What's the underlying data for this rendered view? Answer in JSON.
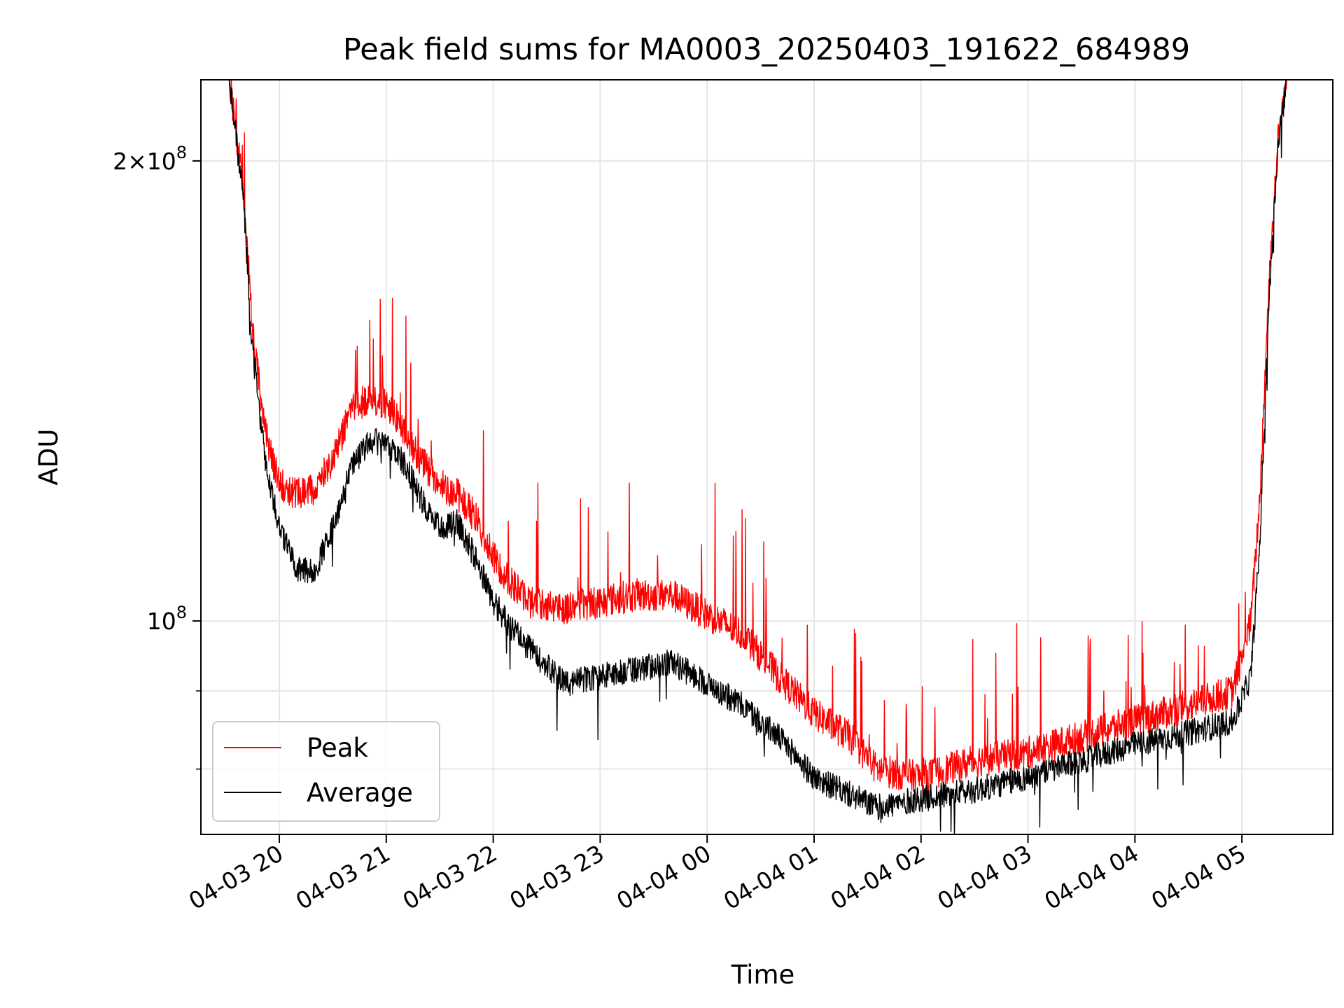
{
  "chart_data": {
    "type": "line",
    "title": "Peak field sums for MA0003_20250403_191622_684989",
    "xlabel": "Time",
    "ylabel": "ADU",
    "y_scale": "log",
    "grid": true,
    "legend_placement": "lower-left",
    "xlim": [
      "2025-04-03 19:16",
      "2025-04-04 05:51"
    ],
    "ylim": [
      72500000,
      226000000
    ],
    "x_ticks": [
      "04-03 20",
      "04-03 21",
      "04-03 22",
      "04-03 23",
      "04-04 00",
      "04-04 01",
      "04-04 02",
      "04-04 03",
      "04-04 04",
      "04-04 05"
    ],
    "x_tick_times": [
      "2025-04-03 20:00",
      "2025-04-03 21:00",
      "2025-04-03 22:00",
      "2025-04-03 23:00",
      "2025-04-04 00:00",
      "2025-04-04 01:00",
      "2025-04-04 02:00",
      "2025-04-04 03:00",
      "2025-04-04 04:00",
      "2025-04-04 05:00"
    ],
    "y_major_ticks": [
      {
        "value": 100000000,
        "mantissa": "",
        "exponent": "8"
      },
      {
        "value": 200000000,
        "mantissa": "2",
        "exponent": "8"
      }
    ],
    "y_minor_ticks": [
      80000000,
      90000000
    ],
    "series": [
      {
        "name": "Peak",
        "color": "#ff0000",
        "x": [
          "2025-04-03 19:16",
          "2025-04-03 19:32",
          "2025-04-03 19:40",
          "2025-04-03 19:45",
          "2025-04-03 19:52",
          "2025-04-03 20:00",
          "2025-04-03 20:10",
          "2025-04-03 20:20",
          "2025-04-03 20:30",
          "2025-04-03 20:40",
          "2025-04-03 20:50",
          "2025-04-03 21:00",
          "2025-04-03 21:10",
          "2025-04-03 21:20",
          "2025-04-03 21:30",
          "2025-04-03 21:40",
          "2025-04-03 21:50",
          "2025-04-03 22:00",
          "2025-04-03 22:10",
          "2025-04-03 22:20",
          "2025-04-03 22:40",
          "2025-04-03 23:00",
          "2025-04-03 23:20",
          "2025-04-03 23:40",
          "2025-04-04 00:00",
          "2025-04-04 00:20",
          "2025-04-04 00:40",
          "2025-04-04 01:00",
          "2025-04-04 01:20",
          "2025-04-04 01:35",
          "2025-04-04 02:00",
          "2025-04-04 02:30",
          "2025-04-04 03:00",
          "2025-04-04 03:30",
          "2025-04-04 04:00",
          "2025-04-04 04:30",
          "2025-04-04 04:55",
          "2025-04-04 05:05",
          "2025-04-04 05:10",
          "2025-04-04 05:15",
          "2025-04-04 05:20",
          "2025-04-04 05:25",
          "2025-04-04 05:30",
          "2025-04-04 05:51"
        ],
        "values": [
          226000000,
          226000000,
          190000000,
          155000000,
          133000000,
          123000000,
          121000000,
          122000000,
          128000000,
          137000000,
          140000000,
          139000000,
          133000000,
          127000000,
          123000000,
          121000000,
          117000000,
          110000000,
          106000000,
          103000000,
          102000000,
          103000000,
          104000000,
          104000000,
          101000000,
          98000000,
          92000000,
          87000000,
          84000000,
          80000000,
          79000000,
          81000000,
          82000000,
          84000000,
          86000000,
          88000000,
          90000000,
          100000000,
          120000000,
          165000000,
          205000000,
          226000000,
          226000000,
          226000000
        ]
      },
      {
        "name": "Average",
        "color": "#000000",
        "x": [
          "2025-04-03 19:16",
          "2025-04-03 19:32",
          "2025-04-03 19:40",
          "2025-04-03 19:45",
          "2025-04-03 19:52",
          "2025-04-03 20:00",
          "2025-04-03 20:10",
          "2025-04-03 20:20",
          "2025-04-03 20:30",
          "2025-04-03 20:40",
          "2025-04-03 20:50",
          "2025-04-03 21:00",
          "2025-04-03 21:10",
          "2025-04-03 21:20",
          "2025-04-03 21:30",
          "2025-04-03 21:40",
          "2025-04-03 21:50",
          "2025-04-03 22:00",
          "2025-04-03 22:10",
          "2025-04-03 22:20",
          "2025-04-03 22:40",
          "2025-04-03 23:00",
          "2025-04-03 23:20",
          "2025-04-03 23:40",
          "2025-04-04 00:00",
          "2025-04-04 00:20",
          "2025-04-04 00:40",
          "2025-04-04 01:00",
          "2025-04-04 01:20",
          "2025-04-04 01:35",
          "2025-04-04 02:00",
          "2025-04-04 02:30",
          "2025-04-04 03:00",
          "2025-04-04 03:30",
          "2025-04-04 04:00",
          "2025-04-04 04:30",
          "2025-04-04 04:55",
          "2025-04-04 05:05",
          "2025-04-04 05:10",
          "2025-04-04 05:15",
          "2025-04-04 05:20",
          "2025-04-04 05:25",
          "2025-04-04 05:30",
          "2025-04-04 05:51"
        ],
        "values": [
          226000000,
          226000000,
          188000000,
          150000000,
          128000000,
          115000000,
          108000000,
          108000000,
          115000000,
          126000000,
          131000000,
          131000000,
          127000000,
          120000000,
          115000000,
          116000000,
          110000000,
          103000000,
          99000000,
          96000000,
          91000000,
          92000000,
          93000000,
          94000000,
          91000000,
          88000000,
          84000000,
          79000000,
          77000000,
          75500000,
          76500000,
          77500000,
          79000000,
          81000000,
          83000000,
          84500000,
          86000000,
          92000000,
          112000000,
          160000000,
          203000000,
          226000000,
          226000000,
          226000000
        ]
      }
    ]
  }
}
